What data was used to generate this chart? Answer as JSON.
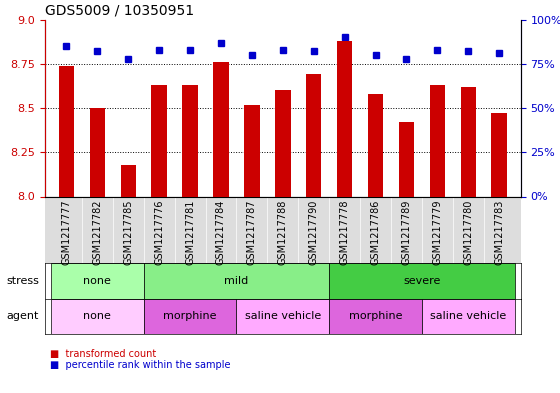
{
  "title": "GDS5009 / 10350951",
  "samples": [
    "GSM1217777",
    "GSM1217782",
    "GSM1217785",
    "GSM1217776",
    "GSM1217781",
    "GSM1217784",
    "GSM1217787",
    "GSM1217788",
    "GSM1217790",
    "GSM1217778",
    "GSM1217786",
    "GSM1217789",
    "GSM1217779",
    "GSM1217780",
    "GSM1217783"
  ],
  "bar_values": [
    8.74,
    8.5,
    8.18,
    8.63,
    8.63,
    8.76,
    8.52,
    8.6,
    8.69,
    8.88,
    8.58,
    8.42,
    8.63,
    8.62,
    8.47
  ],
  "dot_values": [
    85,
    82,
    78,
    83,
    83,
    87,
    80,
    83,
    82,
    90,
    80,
    78,
    83,
    82,
    81
  ],
  "ylim_left": [
    8.0,
    9.0
  ],
  "ylim_right": [
    0,
    100
  ],
  "yticks_left": [
    8.0,
    8.25,
    8.5,
    8.75,
    9.0
  ],
  "yticks_right": [
    0,
    25,
    50,
    75,
    100
  ],
  "ytick_labels_right": [
    "0%",
    "25%",
    "50%",
    "75%",
    "100%"
  ],
  "bar_color": "#cc0000",
  "dot_color": "#0000cc",
  "stress_groups": [
    {
      "label": "none",
      "start": 0,
      "end": 3,
      "color": "#aaffaa"
    },
    {
      "label": "mild",
      "start": 3,
      "end": 9,
      "color": "#88ee88"
    },
    {
      "label": "severe",
      "start": 9,
      "end": 15,
      "color": "#44cc44"
    }
  ],
  "agent_groups": [
    {
      "label": "none",
      "start": 0,
      "end": 3,
      "color": "#ffaaff"
    },
    {
      "label": "morphine",
      "start": 3,
      "end": 6,
      "color": "#ee66ee"
    },
    {
      "label": "saline vehicle",
      "start": 6,
      "end": 9,
      "color": "#ee88ee"
    },
    {
      "label": "morphine",
      "start": 9,
      "end": 12,
      "color": "#ee66ee"
    },
    {
      "label": "saline vehicle",
      "start": 12,
      "end": 15,
      "color": "#ee88ee"
    }
  ],
  "legend_items": [
    {
      "label": "transformed count",
      "color": "#cc0000",
      "marker": "s"
    },
    {
      "label": "percentile rank within the sample",
      "color": "#0000cc",
      "marker": "s"
    }
  ]
}
